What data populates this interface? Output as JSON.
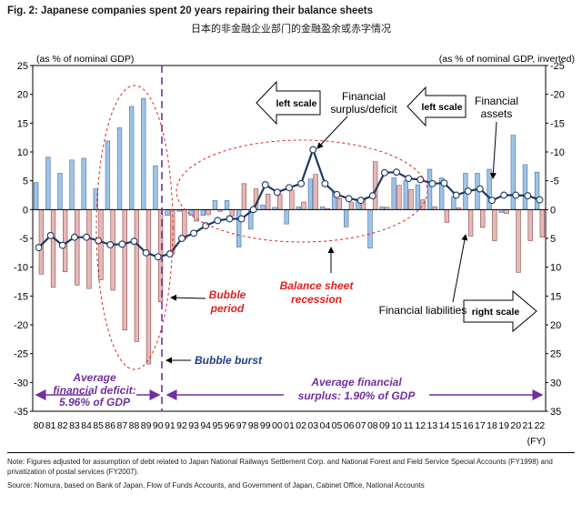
{
  "header": {
    "title": "Fig. 2: Japanese companies spent 20 years repairing their balance sheets",
    "subtitle": "日本的非金融企业部门的金融盈余或赤字情况"
  },
  "axis_notes": {
    "left": "(as % of nominal GDP)",
    "right": "(as % of nominal GDP, inverted)"
  },
  "annotations": {
    "left_scale_arrow_1": "left scale",
    "financial_surplus": [
      "Financial",
      "surplus/deficit"
    ],
    "left_scale_arrow_2": "left scale",
    "financial_assets": [
      "Financial",
      "assets"
    ],
    "bubble_period": [
      "Bubble",
      "period"
    ],
    "balance_sheet_recession": [
      "Balance sheet",
      "recession"
    ],
    "financial_liabilities": "Financial liabilities",
    "right_scale_arrow": "right scale",
    "bubble_burst": "Bubble burst",
    "avg_deficit": [
      "Average",
      "financial deficit:",
      "5.96% of GDP"
    ],
    "avg_surplus": [
      "Average financial",
      "surplus: 1.90% of GDP"
    ]
  },
  "colors": {
    "assets": "#9dc3e6",
    "liabilities": "#e6b8b7",
    "line": "#1f3864",
    "annotation_red": "#e02020",
    "annotation_blue": "#1f3e8c",
    "annotation_purple": "#7030a0"
  },
  "footer": {
    "note_line1": "Note: Figures adjusted for assumption of debt related to Japan National Railways Settlement Corp. and National Forest and Field Service Special Accounts (FY1998) and",
    "note_line2": "privatization of postal services (FY2007).",
    "source": "Source: Nomura, based on Bank of Japan, Flow of Funds Accounts, and Government of Japan, Cabinet Office, National Accounts"
  },
  "chart_data": {
    "type": "bar",
    "x": [
      "80",
      "81",
      "82",
      "83",
      "84",
      "85",
      "86",
      "87",
      "88",
      "89",
      "90",
      "91",
      "92",
      "93",
      "94",
      "95",
      "96",
      "97",
      "98",
      "99",
      "00",
      "01",
      "02",
      "03",
      "04",
      "05",
      "06",
      "07",
      "08",
      "09",
      "10",
      "11",
      "12",
      "13",
      "14",
      "15",
      "16",
      "17",
      "18",
      "19",
      "20",
      "21",
      "22"
    ],
    "xlabel": "(FY)",
    "ylabel_left": "(as % of nominal GDP)",
    "ylabel_right": "(as % of nominal GDP, inverted)",
    "ylim": [
      -35,
      25
    ],
    "yticks_left": [
      "25",
      "20",
      "15",
      "10",
      "5",
      "0",
      "-5",
      "-10",
      "-15",
      "-20",
      "-25",
      "-30",
      "-35"
    ],
    "yticks_right": [
      "-25",
      "-20",
      "-15",
      "-10",
      "-5",
      "0",
      "5",
      "10",
      "15",
      "20",
      "25",
      "30",
      "35"
    ],
    "series": [
      {
        "name": "Financial assets",
        "values": [
          4.7,
          9.1,
          6.3,
          8.6,
          8.9,
          3.6,
          11.9,
          14.2,
          17.9,
          19.3,
          7.6,
          -1.0,
          -0.3,
          -1.0,
          -1.0,
          1.6,
          1.6,
          -6.5,
          -3.4,
          0.8,
          0.4,
          -2.5,
          0.5,
          5.3,
          0.5,
          3.0,
          -3.0,
          1.6,
          -6.7,
          0.5,
          5.5,
          5.0,
          4.3,
          7.0,
          5.5,
          2.2,
          6.3,
          6.3,
          7.0,
          -0.5,
          12.9,
          7.8,
          6.5
        ]
      },
      {
        "name": "Financial liabilities",
        "values": [
          -11.2,
          -13.5,
          -10.8,
          -13.1,
          -13.7,
          -12.2,
          -14.0,
          -20.9,
          -22.9,
          -26.8,
          -16.0,
          -7.7,
          -5.1,
          -2.0,
          -0.9,
          -0.3,
          -1.1,
          4.5,
          3.6,
          2.7,
          2.6,
          3.4,
          1.3,
          6.1,
          0.2,
          1.9,
          1.2,
          1.7,
          8.3,
          0.4,
          4.2,
          3.5,
          1.7,
          0.5,
          -2.2,
          0.3,
          -4.6,
          -3.1,
          -5.4,
          -0.7,
          -10.9,
          -5.4,
          -4.8
        ]
      },
      {
        "name": "Financial surplus/deficit",
        "type": "line",
        "values": [
          -6.6,
          -4.5,
          -6.2,
          -4.8,
          -4.8,
          -5.4,
          -6.1,
          -6.0,
          -5.5,
          -7.5,
          -8.2,
          -7.7,
          -5.0,
          -4.1,
          -2.8,
          -1.9,
          -1.6,
          -1.6,
          0.0,
          4.3,
          3.0,
          3.8,
          4.5,
          10.4,
          4.5,
          2.6,
          1.9,
          1.6,
          2.4,
          6.4,
          6.5,
          5.4,
          5.2,
          4.5,
          4.6,
          2.5,
          3.2,
          3.6,
          1.6,
          2.5,
          2.5,
          2.4,
          1.7
        ]
      }
    ]
  }
}
